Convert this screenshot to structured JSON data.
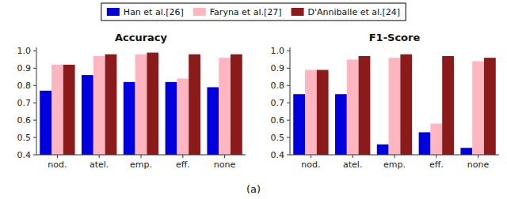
{
  "chart_data": [
    {
      "type": "bar",
      "title": "Accuracy",
      "xlabel": "(a)",
      "legend": "top",
      "grid": false,
      "categories": [
        "nod.",
        "atel.",
        "emp.",
        "eff.",
        "none"
      ],
      "series": [
        {
          "name": "Han et al.[26]",
          "color": "#0000dd",
          "values": [
            0.77,
            0.86,
            0.82,
            0.82,
            0.79
          ]
        },
        {
          "name": "Faryna et al.[27]",
          "color": "#ffb6c1",
          "values": [
            0.92,
            0.97,
            0.98,
            0.84,
            0.96
          ]
        },
        {
          "name": "D'Anniballe et al.[24]",
          "color": "#8b1a1a",
          "values": [
            0.92,
            0.98,
            0.99,
            0.98,
            0.98
          ]
        }
      ],
      "ylim": [
        0.4,
        1.02
      ],
      "yticks": [
        0.4,
        0.5,
        0.6,
        0.7,
        0.8,
        0.9,
        {
          "value": 1.0,
          "label": "1.0"
        }
      ]
    },
    {
      "type": "bar",
      "title": "F1-Score",
      "grid": false,
      "categories": [
        "nod.",
        "atel.",
        "emp.",
        "eff.",
        "none"
      ],
      "series": [
        {
          "name": "Han et al.[26]",
          "color": "#0000dd",
          "values": [
            0.75,
            0.75,
            0.46,
            0.53,
            0.44
          ]
        },
        {
          "name": "Faryna et al.[27]",
          "color": "#ffb6c1",
          "values": [
            0.89,
            0.95,
            0.96,
            0.58,
            0.94
          ]
        },
        {
          "name": "D'Anniballe et al.[24]",
          "color": "#8b1a1a",
          "values": [
            0.89,
            0.97,
            0.98,
            0.97,
            0.96
          ]
        }
      ],
      "ylim": [
        0.4,
        1.02
      ],
      "yticks": [
        0.4,
        0.5,
        0.6,
        0.7,
        0.8,
        0.9,
        {
          "value": 1.0,
          "label": "1.0"
        }
      ]
    }
  ]
}
